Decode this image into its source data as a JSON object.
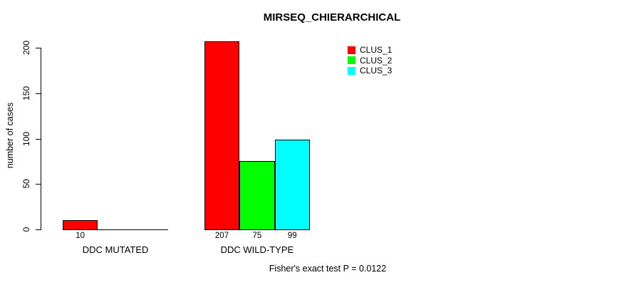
{
  "chart_data": {
    "type": "bar",
    "title": "MIRSEQ_CHIERARCHICAL",
    "ylabel": "number of cases",
    "xlabel": "",
    "categories": [
      "DDC MUTATED",
      "DDC WILD-TYPE"
    ],
    "series": [
      {
        "name": "CLUS_1",
        "color": "#ff0000",
        "values": [
          10,
          207
        ]
      },
      {
        "name": "CLUS_2",
        "color": "#00ff00",
        "values": [
          0,
          75
        ]
      },
      {
        "name": "CLUS_3",
        "color": "#00ffff",
        "values": [
          0,
          99
        ]
      }
    ],
    "bar_value_labels": [
      [
        "10",
        "",
        ""
      ],
      [
        "207",
        "75",
        "99"
      ]
    ],
    "yticks": [
      0,
      50,
      100,
      150,
      200
    ],
    "ylim": [
      0,
      200
    ],
    "grid": false,
    "legend_position": "top-right",
    "annotation": "Fisher's exact test P = 0.0122"
  }
}
